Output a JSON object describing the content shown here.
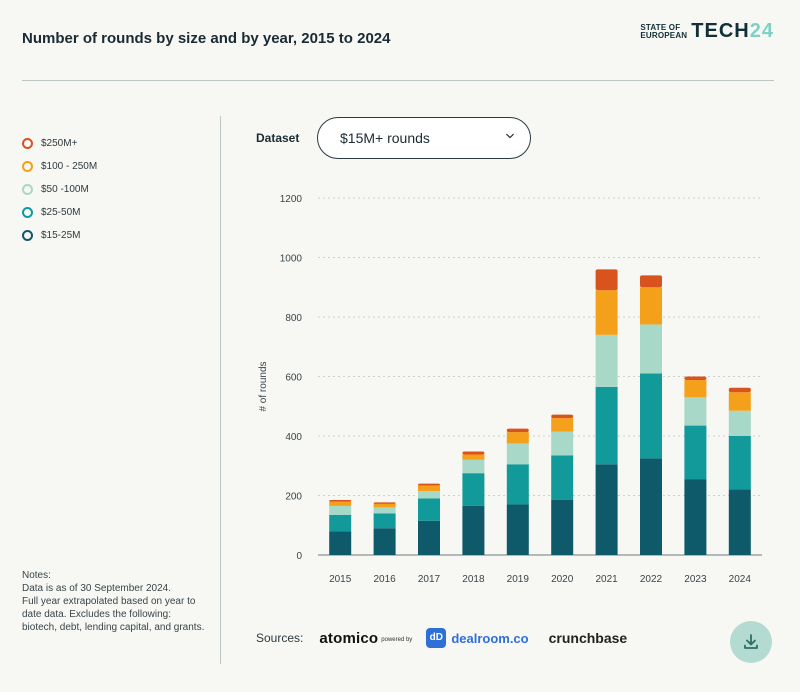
{
  "header": {
    "title": "Number of rounds by size and by year, 2015 to 2024",
    "brand_small_line1": "STATE OF",
    "brand_small_line2": "EUROPEAN",
    "brand_tech": "TECH",
    "brand_year": "24"
  },
  "legend": [
    {
      "label": "$250M+",
      "color": "#d9531e"
    },
    {
      "label": "$100 - 250M",
      "color": "#f5a01a"
    },
    {
      "label": "$50 -100M",
      "color": "#a8d8c8"
    },
    {
      "label": "$25-50M",
      "color": "#12999a"
    },
    {
      "label": "$15-25M",
      "color": "#0e5a6b"
    }
  ],
  "controls": {
    "dataset_label": "Dataset",
    "dataset_value": "$15M+ rounds"
  },
  "notes": {
    "heading": "Notes:",
    "body": "Data is as of 30 September 2024.\nFull year extrapolated based on year to date data. Excludes the following: biotech, debt, lending capital, and grants."
  },
  "sources": {
    "label": "Sources:",
    "atomico": "atomico",
    "powered_by": "powered by",
    "dealroom_badge": "dD",
    "dealroom": "dealroom.co",
    "crunchbase": "crunchbase"
  },
  "icons": {
    "dropdown": "chevron-down-icon",
    "download": "download-icon"
  },
  "chart_data": {
    "type": "bar",
    "stacked": true,
    "title": "",
    "xlabel": "",
    "ylabel": "# of rounds",
    "ylim": [
      0,
      1200
    ],
    "yticks": [
      0,
      200,
      400,
      600,
      800,
      1000,
      1200
    ],
    "grid": true,
    "categories": [
      "2015",
      "2016",
      "2017",
      "2018",
      "2019",
      "2020",
      "2021",
      "2022",
      "2023",
      "2024"
    ],
    "series": [
      {
        "name": "$15-25M",
        "color": "#0e5a6b",
        "values": [
          80,
          90,
          115,
          165,
          170,
          185,
          305,
          325,
          255,
          220
        ]
      },
      {
        "name": "$25-50M",
        "color": "#12999a",
        "values": [
          55,
          50,
          75,
          110,
          135,
          150,
          260,
          285,
          180,
          180
        ]
      },
      {
        "name": "$50 -100M",
        "color": "#a8d8c8",
        "values": [
          30,
          20,
          25,
          45,
          70,
          80,
          175,
          165,
          95,
          85
        ]
      },
      {
        "name": "$100 - 250M",
        "color": "#f5a01a",
        "values": [
          15,
          12,
          18,
          18,
          38,
          45,
          150,
          125,
          58,
          62
        ]
      },
      {
        "name": "$250M+",
        "color": "#d9531e",
        "values": [
          5,
          5,
          7,
          10,
          12,
          12,
          70,
          40,
          12,
          15
        ]
      }
    ]
  }
}
